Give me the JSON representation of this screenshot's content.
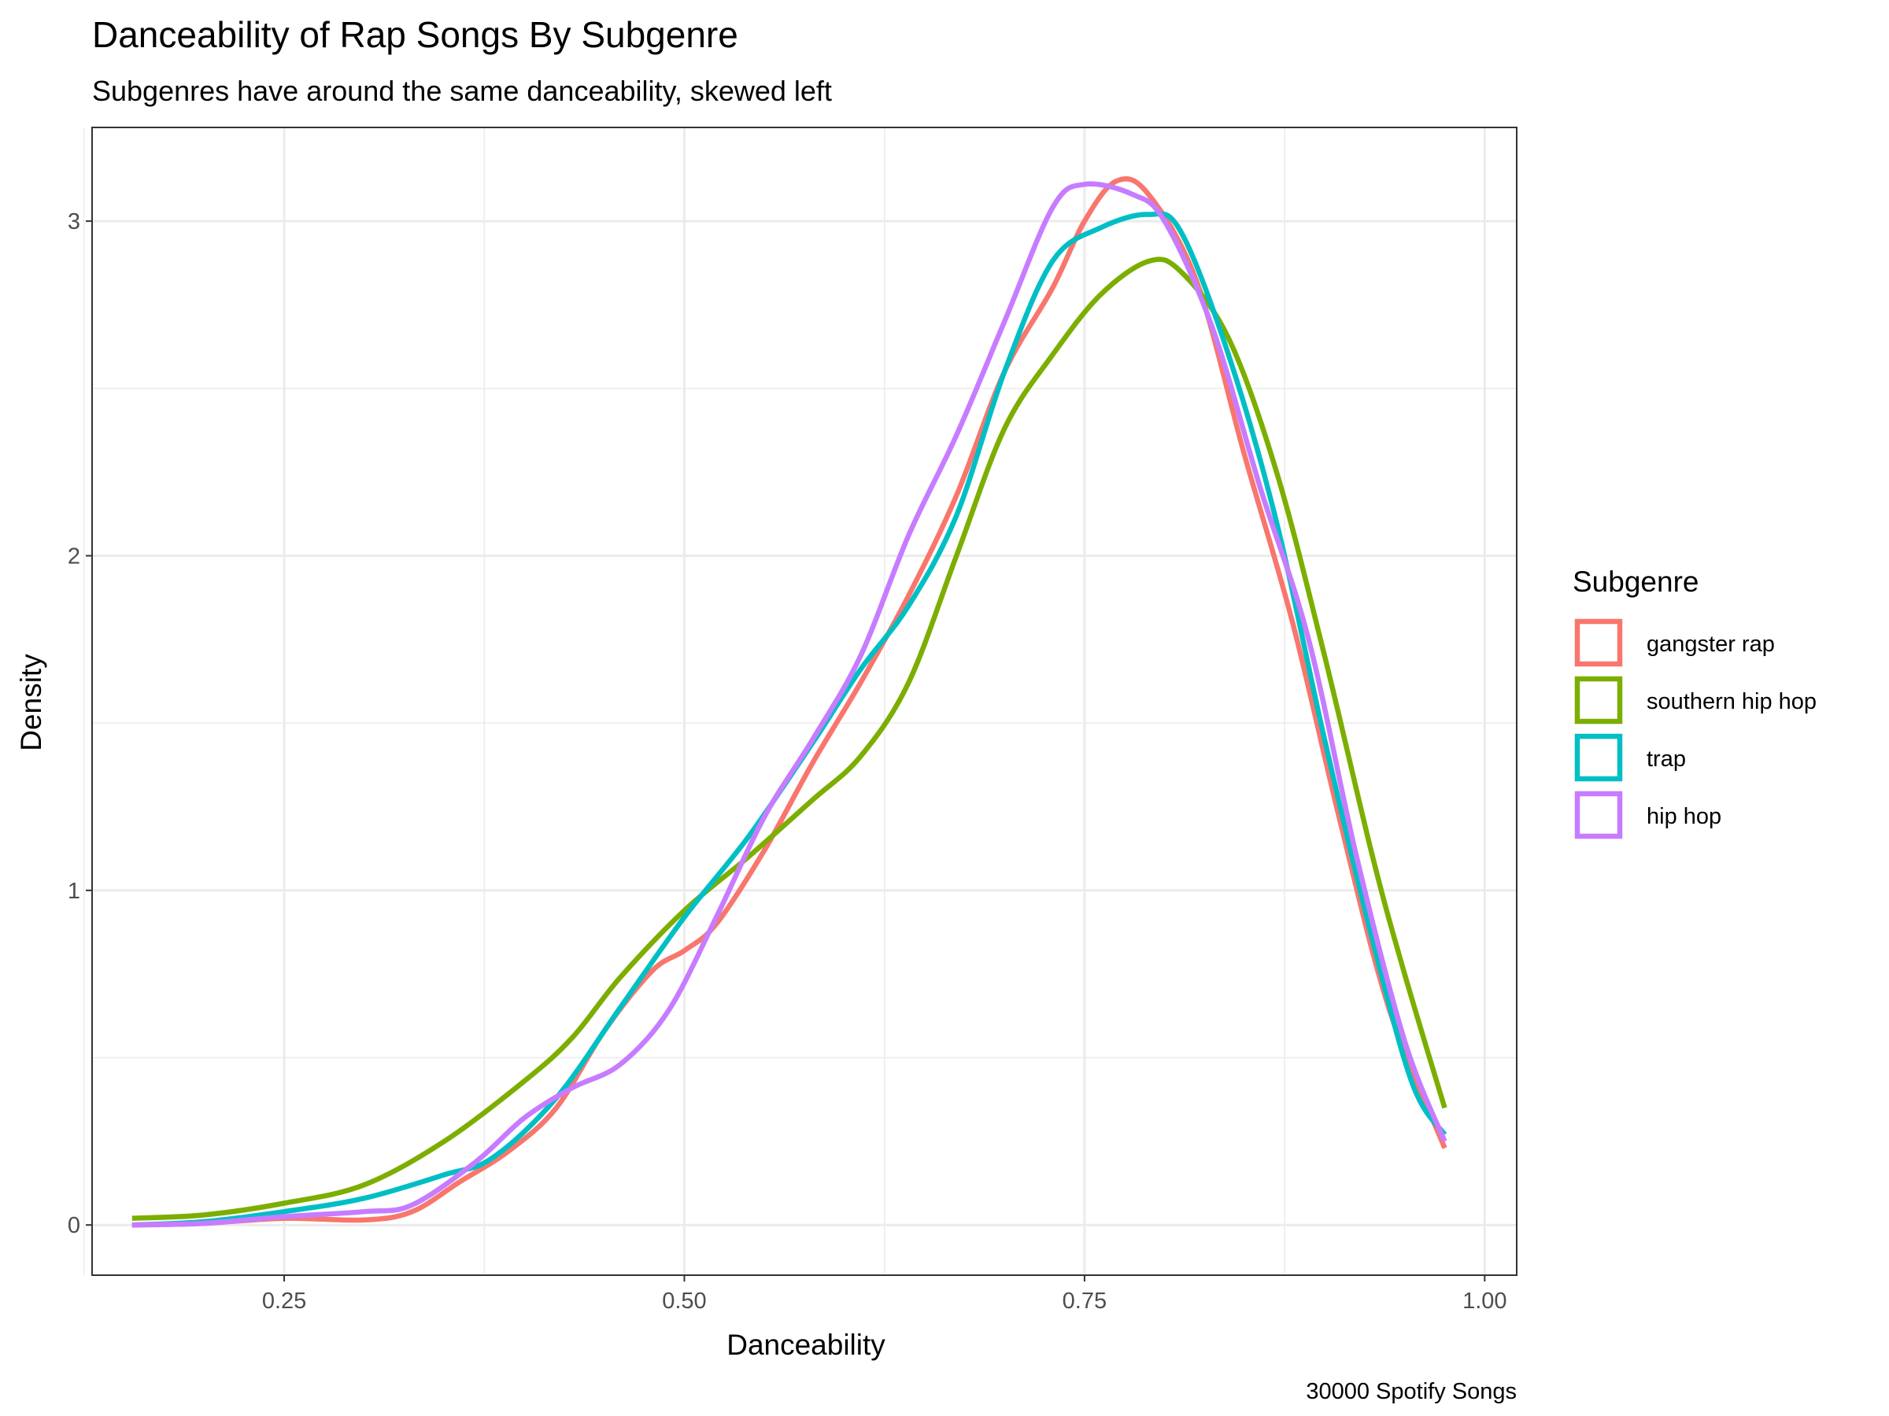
{
  "chart_data": {
    "type": "line",
    "title": "Danceability of Rap Songs By Subgenre",
    "subtitle": "Subgenres have around the same danceability, skewed left",
    "caption": "30000 Spotify Songs",
    "xlabel": "Danceability",
    "ylabel": "Density",
    "xlim": [
      0.13,
      1.02
    ],
    "ylim": [
      -0.15,
      3.28
    ],
    "x_ticks": [
      0.25,
      0.5,
      0.75,
      1.0
    ],
    "x_tick_labels": [
      "0.25",
      "0.50",
      "0.75",
      "1.00"
    ],
    "x_minor_ticks": [
      0.125,
      0.375,
      0.625,
      0.875
    ],
    "y_ticks": [
      0,
      1,
      2,
      3
    ],
    "y_tick_labels": [
      "0",
      "1",
      "2",
      "3"
    ],
    "y_minor_ticks": [
      0.5,
      1.5,
      2.5
    ],
    "grid": true,
    "legend": {
      "title": "Subgenre",
      "placement": "right"
    },
    "series": [
      {
        "name": "gangster rap",
        "color": "#F8766D",
        "points": [
          [
            0.155,
            0.0
          ],
          [
            0.2,
            0.005
          ],
          [
            0.25,
            0.02
          ],
          [
            0.3,
            0.015
          ],
          [
            0.33,
            0.04
          ],
          [
            0.36,
            0.13
          ],
          [
            0.39,
            0.22
          ],
          [
            0.42,
            0.35
          ],
          [
            0.45,
            0.58
          ],
          [
            0.48,
            0.76
          ],
          [
            0.5,
            0.82
          ],
          [
            0.52,
            0.9
          ],
          [
            0.55,
            1.12
          ],
          [
            0.58,
            1.38
          ],
          [
            0.61,
            1.62
          ],
          [
            0.64,
            1.88
          ],
          [
            0.67,
            2.18
          ],
          [
            0.7,
            2.55
          ],
          [
            0.73,
            2.8
          ],
          [
            0.75,
            3.0
          ],
          [
            0.77,
            3.12
          ],
          [
            0.79,
            3.08
          ],
          [
            0.82,
            2.82
          ],
          [
            0.85,
            2.3
          ],
          [
            0.88,
            1.8
          ],
          [
            0.91,
            1.2
          ],
          [
            0.94,
            0.65
          ],
          [
            0.975,
            0.23
          ]
        ]
      },
      {
        "name": "southern hip hop",
        "color": "#7CAE00",
        "points": [
          [
            0.155,
            0.02
          ],
          [
            0.2,
            0.03
          ],
          [
            0.25,
            0.065
          ],
          [
            0.3,
            0.12
          ],
          [
            0.35,
            0.25
          ],
          [
            0.4,
            0.43
          ],
          [
            0.43,
            0.56
          ],
          [
            0.46,
            0.74
          ],
          [
            0.5,
            0.94
          ],
          [
            0.54,
            1.1
          ],
          [
            0.58,
            1.27
          ],
          [
            0.61,
            1.4
          ],
          [
            0.64,
            1.62
          ],
          [
            0.67,
            2.0
          ],
          [
            0.7,
            2.38
          ],
          [
            0.73,
            2.6
          ],
          [
            0.76,
            2.78
          ],
          [
            0.79,
            2.88
          ],
          [
            0.81,
            2.85
          ],
          [
            0.84,
            2.65
          ],
          [
            0.87,
            2.25
          ],
          [
            0.9,
            1.7
          ],
          [
            0.93,
            1.1
          ],
          [
            0.95,
            0.75
          ],
          [
            0.975,
            0.35
          ]
        ]
      },
      {
        "name": "trap",
        "color": "#00BFC4",
        "points": [
          [
            0.155,
            0.0
          ],
          [
            0.2,
            0.01
          ],
          [
            0.25,
            0.04
          ],
          [
            0.3,
            0.08
          ],
          [
            0.35,
            0.15
          ],
          [
            0.38,
            0.2
          ],
          [
            0.42,
            0.38
          ],
          [
            0.46,
            0.65
          ],
          [
            0.5,
            0.92
          ],
          [
            0.54,
            1.16
          ],
          [
            0.58,
            1.44
          ],
          [
            0.61,
            1.66
          ],
          [
            0.64,
            1.85
          ],
          [
            0.67,
            2.12
          ],
          [
            0.7,
            2.55
          ],
          [
            0.73,
            2.88
          ],
          [
            0.76,
            2.98
          ],
          [
            0.79,
            3.02
          ],
          [
            0.81,
            2.97
          ],
          [
            0.84,
            2.6
          ],
          [
            0.87,
            2.1
          ],
          [
            0.9,
            1.45
          ],
          [
            0.93,
            0.85
          ],
          [
            0.955,
            0.42
          ],
          [
            0.975,
            0.27
          ]
        ]
      },
      {
        "name": "hip hop",
        "color": "#C77CFF",
        "points": [
          [
            0.155,
            0.0
          ],
          [
            0.2,
            0.005
          ],
          [
            0.25,
            0.025
          ],
          [
            0.3,
            0.04
          ],
          [
            0.33,
            0.06
          ],
          [
            0.37,
            0.19
          ],
          [
            0.4,
            0.32
          ],
          [
            0.43,
            0.41
          ],
          [
            0.46,
            0.48
          ],
          [
            0.49,
            0.64
          ],
          [
            0.52,
            0.92
          ],
          [
            0.55,
            1.22
          ],
          [
            0.58,
            1.45
          ],
          [
            0.61,
            1.7
          ],
          [
            0.64,
            2.06
          ],
          [
            0.67,
            2.36
          ],
          [
            0.7,
            2.7
          ],
          [
            0.73,
            3.04
          ],
          [
            0.75,
            3.11
          ],
          [
            0.78,
            3.08
          ],
          [
            0.8,
            3.0
          ],
          [
            0.83,
            2.68
          ],
          [
            0.86,
            2.2
          ],
          [
            0.89,
            1.75
          ],
          [
            0.92,
            1.1
          ],
          [
            0.95,
            0.55
          ],
          [
            0.975,
            0.25
          ]
        ]
      }
    ]
  }
}
